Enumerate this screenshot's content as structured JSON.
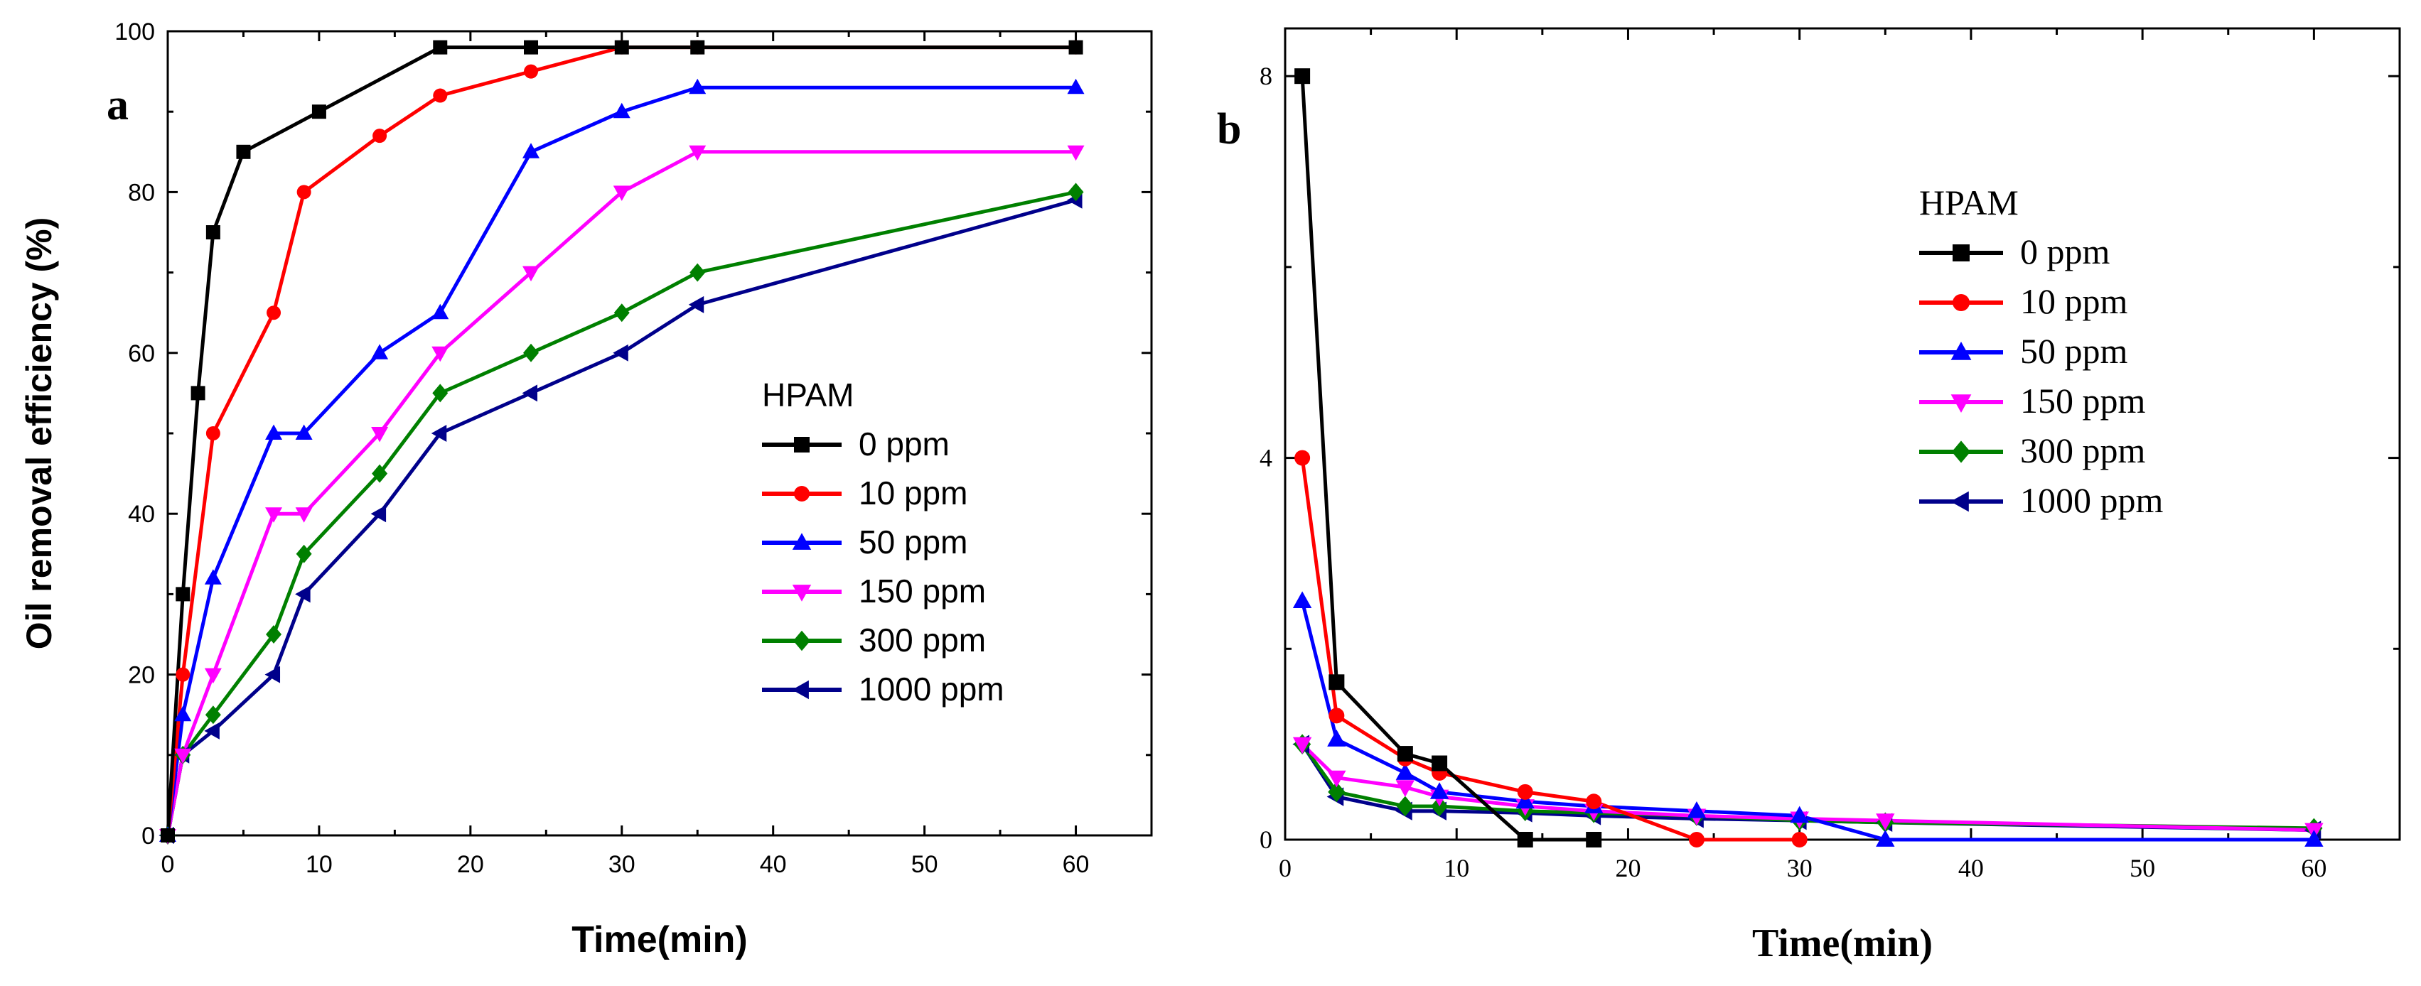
{
  "chart_data": [
    {
      "id": "a",
      "type": "line",
      "panel_label": "a",
      "title": "",
      "xlabel": "Time(min)",
      "ylabel": "Oil removal efficiency (%)",
      "xlim": [
        0,
        65
      ],
      "ylim": [
        0,
        100
      ],
      "xticks": [
        0,
        10,
        20,
        30,
        40,
        50,
        60
      ],
      "yticks": [
        0,
        20,
        40,
        60,
        80,
        100
      ],
      "legend_title": "HPAM",
      "legend_position": "center-right",
      "series": [
        {
          "name": "0 ppm",
          "color": "#000000",
          "marker": "square",
          "x": [
            0,
            1,
            2,
            3,
            5,
            10,
            18,
            24,
            30,
            35,
            60
          ],
          "y": [
            0,
            30,
            55,
            75,
            85,
            90,
            98,
            98,
            98,
            98,
            98
          ]
        },
        {
          "name": "10 ppm",
          "color": "#ff0000",
          "marker": "circle",
          "x": [
            0,
            1,
            3,
            7,
            9,
            14,
            18,
            24,
            30,
            35,
            60
          ],
          "y": [
            0,
            20,
            50,
            65,
            80,
            87,
            92,
            95,
            98,
            98,
            98
          ]
        },
        {
          "name": "50 ppm",
          "color": "#0000ff",
          "marker": "triangle-up",
          "x": [
            0,
            1,
            3,
            7,
            9,
            14,
            18,
            24,
            30,
            35,
            60
          ],
          "y": [
            0,
            15,
            32,
            50,
            50,
            60,
            65,
            85,
            90,
            93,
            93
          ]
        },
        {
          "name": "150 ppm",
          "color": "#ff00ff",
          "marker": "triangle-down",
          "x": [
            0,
            1,
            3,
            7,
            9,
            14,
            18,
            24,
            30,
            35,
            60
          ],
          "y": [
            0,
            10,
            20,
            40,
            40,
            50,
            60,
            70,
            80,
            85,
            85
          ]
        },
        {
          "name": "300 ppm",
          "color": "#008000",
          "marker": "diamond",
          "x": [
            0,
            1,
            3,
            7,
            9,
            14,
            18,
            24,
            30,
            35,
            60
          ],
          "y": [
            0,
            10,
            15,
            25,
            35,
            45,
            55,
            60,
            65,
            70,
            80
          ]
        },
        {
          "name": "1000 ppm",
          "color": "#00008b",
          "marker": "triangle-left",
          "x": [
            0,
            1,
            3,
            7,
            9,
            14,
            18,
            24,
            30,
            35,
            60
          ],
          "y": [
            0,
            10,
            13,
            20,
            30,
            40,
            50,
            55,
            60,
            66,
            79
          ]
        }
      ]
    },
    {
      "id": "b",
      "type": "line",
      "panel_label": "b",
      "title": "",
      "xlabel": "Time(min)",
      "ylabel": "",
      "xlim": [
        0,
        65
      ],
      "ylim": [
        0,
        8.5
      ],
      "xticks": [
        0,
        10,
        20,
        30,
        40,
        50,
        60
      ],
      "yticks": [
        0,
        4,
        8
      ],
      "legend_title": "HPAM",
      "legend_position": "top-center",
      "series": [
        {
          "name": "0 ppm",
          "color": "#000000",
          "marker": "square",
          "x": [
            1,
            3,
            7,
            9,
            14,
            18
          ],
          "y": [
            8.0,
            1.65,
            0.9,
            0.8,
            0.0,
            0.0
          ]
        },
        {
          "name": "10 ppm",
          "color": "#ff0000",
          "marker": "circle",
          "x": [
            1,
            3,
            7,
            9,
            14,
            18,
            24,
            30
          ],
          "y": [
            4.0,
            1.3,
            0.85,
            0.7,
            0.5,
            0.4,
            0.0,
            0.0
          ]
        },
        {
          "name": "50 ppm",
          "color": "#0000ff",
          "marker": "triangle-up",
          "x": [
            1,
            3,
            7,
            9,
            14,
            18,
            24,
            30,
            35,
            60
          ],
          "y": [
            2.5,
            1.05,
            0.7,
            0.5,
            0.4,
            0.35,
            0.3,
            0.25,
            0.0,
            0.0
          ]
        },
        {
          "name": "150 ppm",
          "color": "#ff00ff",
          "marker": "triangle-down",
          "x": [
            1,
            3,
            7,
            9,
            14,
            18,
            24,
            30,
            35,
            60
          ],
          "y": [
            1.0,
            0.65,
            0.55,
            0.45,
            0.35,
            0.3,
            0.25,
            0.22,
            0.2,
            0.1
          ]
        },
        {
          "name": "300 ppm",
          "color": "#008000",
          "marker": "diamond",
          "x": [
            1,
            3,
            7,
            9,
            14,
            18,
            24,
            30,
            35,
            60
          ],
          "y": [
            1.0,
            0.5,
            0.35,
            0.35,
            0.3,
            0.28,
            0.25,
            0.2,
            0.18,
            0.12
          ]
        },
        {
          "name": "1000 ppm",
          "color": "#00008b",
          "marker": "triangle-left",
          "x": [
            1,
            3,
            7,
            9,
            14,
            18,
            24,
            30,
            35,
            60
          ],
          "y": [
            1.0,
            0.45,
            0.3,
            0.3,
            0.28,
            0.25,
            0.22,
            0.2,
            0.18,
            0.1
          ]
        }
      ]
    }
  ]
}
